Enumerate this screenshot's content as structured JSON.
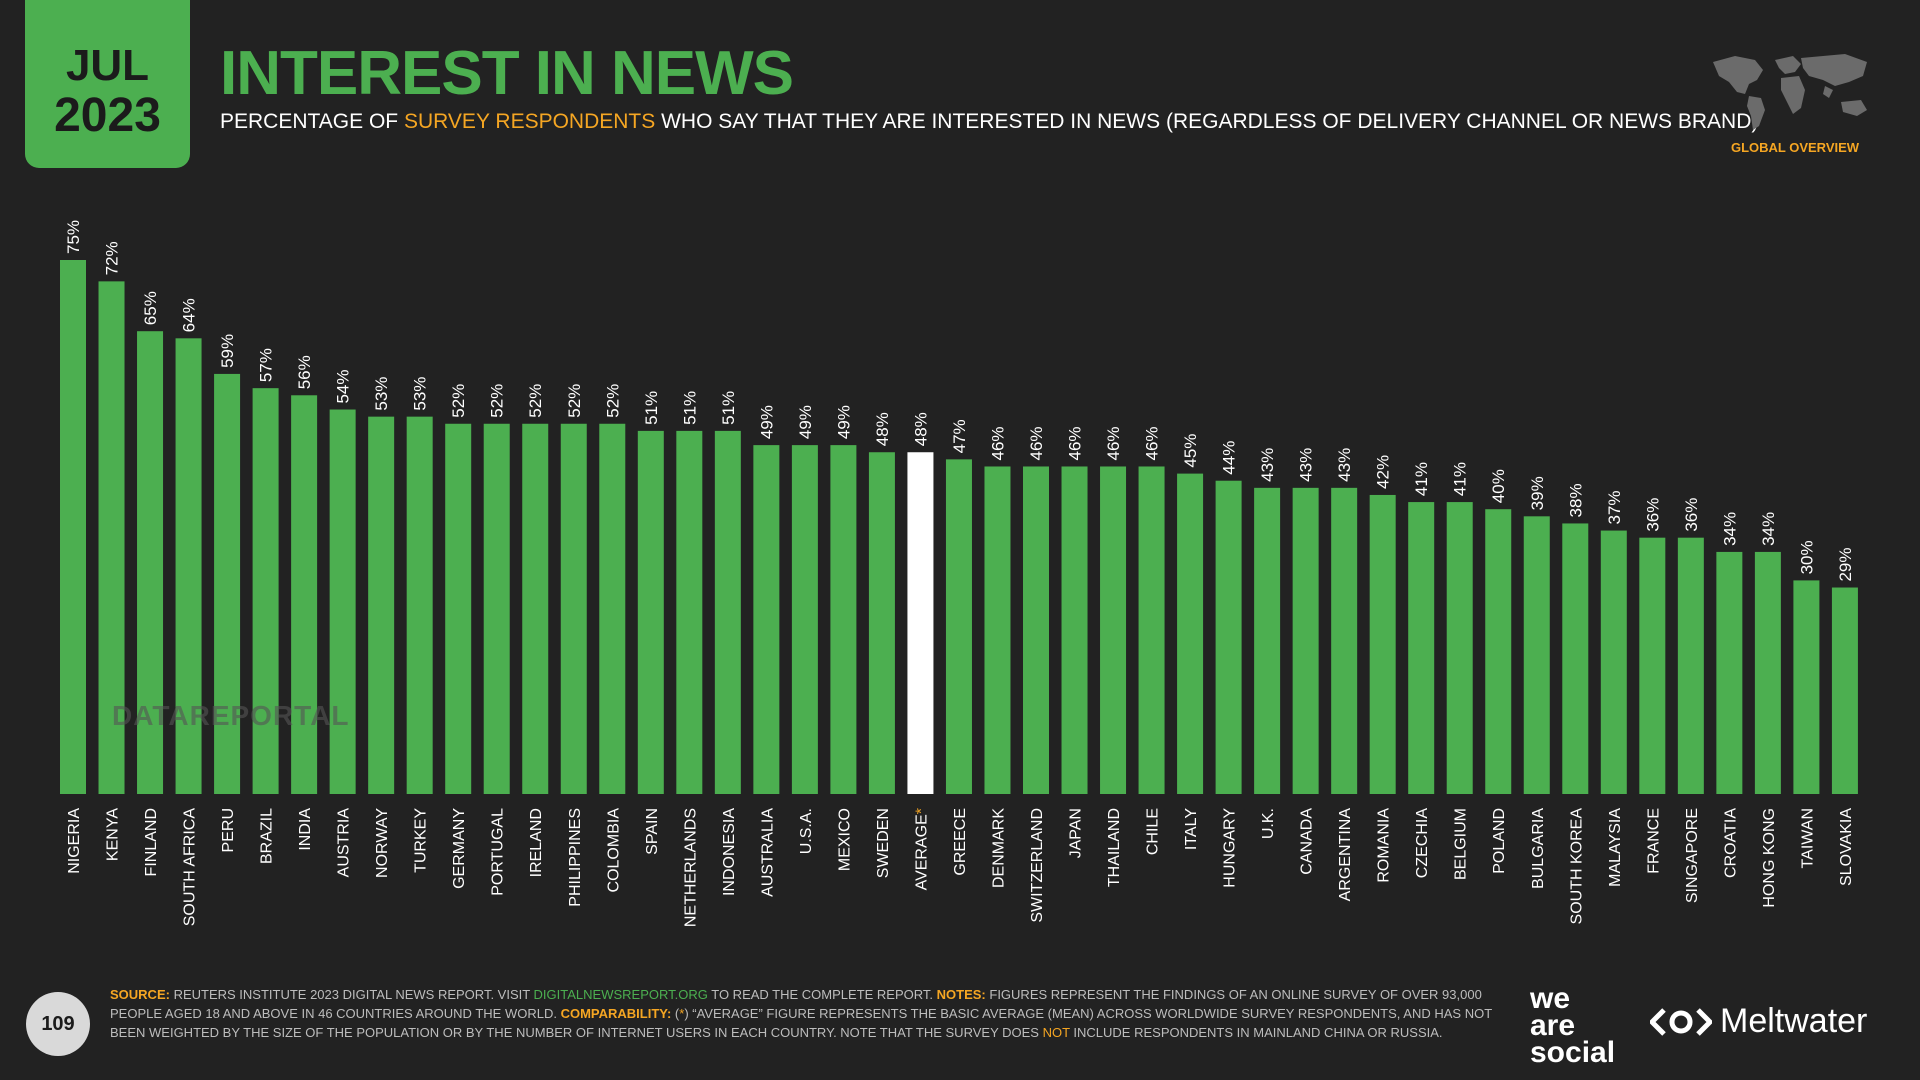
{
  "header": {
    "date_month": "JUL",
    "date_year": "2023",
    "title": "INTEREST IN NEWS",
    "subtitle_pre": "PERCENTAGE OF ",
    "subtitle_highlight": "SURVEY RESPONDENTS",
    "subtitle_post": " WHO SAY THAT THEY ARE INTERESTED IN NEWS (REGARDLESS OF DELIVERY CHANNEL OR NEWS BRAND)",
    "global_label": "GLOBAL OVERVIEW"
  },
  "watermark": "DATAREPORTAL",
  "chart_data": {
    "type": "bar",
    "categories": [
      "NIGERIA",
      "KENYA",
      "FINLAND",
      "SOUTH AFRICA",
      "PERU",
      "BRAZIL",
      "INDIA",
      "AUSTRIA",
      "NORWAY",
      "TURKEY",
      "GERMANY",
      "PORTUGAL",
      "IRELAND",
      "PHILIPPINES",
      "COLOMBIA",
      "SPAIN",
      "NETHERLANDS",
      "INDONESIA",
      "AUSTRALIA",
      "U.S.A.",
      "MEXICO",
      "SWEDEN",
      "AVERAGE",
      "GREECE",
      "DENMARK",
      "SWITZERLAND",
      "JAPAN",
      "THAILAND",
      "CHILE",
      "ITALY",
      "HUNGARY",
      "U.K.",
      "CANADA",
      "ARGENTINA",
      "ROMANIA",
      "CZECHIA",
      "BELGIUM",
      "POLAND",
      "BULGARIA",
      "SOUTH KOREA",
      "MALAYSIA",
      "FRANCE",
      "SINGAPORE",
      "CROATIA",
      "HONG KONG",
      "TAIWAN",
      "SLOVAKIA"
    ],
    "values": [
      75,
      72,
      65,
      64,
      59,
      57,
      56,
      54,
      53,
      53,
      52,
      52,
      52,
      52,
      52,
      51,
      51,
      51,
      49,
      49,
      49,
      48,
      48,
      47,
      46,
      46,
      46,
      46,
      46,
      45,
      44,
      43,
      43,
      43,
      42,
      41,
      41,
      40,
      39,
      38,
      37,
      36,
      36,
      34,
      34,
      30,
      29
    ],
    "value_suffix": "%",
    "highlight_category": "AVERAGE",
    "highlight_marker": "*",
    "ylim": [
      0,
      75
    ],
    "grid": false,
    "colors": {
      "bar": "#4caf50",
      "highlight": "#ffffff",
      "marker": "#f5a623"
    }
  },
  "footer": {
    "source_label": "SOURCE:",
    "source_text": " REUTERS INSTITUTE 2023 DIGITAL NEWS REPORT. VISIT ",
    "source_link": "DIGITALNEWSREPORT.ORG",
    "source_tail": " TO READ THE COMPLETE REPORT. ",
    "notes_label": "NOTES:",
    "notes_text": " FIGURES REPRESENT THE FINDINGS OF AN ONLINE SURVEY OF OVER 93,000 PEOPLE AGED 18 AND ABOVE IN 46 COUNTRIES AROUND THE WORLD. ",
    "comparability_label": "COMPARABILITY:",
    "comparability_pre": " (",
    "comparability_star": "*",
    "comparability_text": ") “AVERAGE” FIGURE REPRESENTS THE BASIC AVERAGE (MEAN) ACROSS WORLDWIDE SURVEY RESPONDENTS, AND HAS NOT BEEN WEIGHTED BY THE SIZE OF THE POPULATION OR BY THE NUMBER OF INTERNET USERS IN EACH COUNTRY. NOTE THAT THE SURVEY DOES ",
    "not_word": "NOT",
    "comparability_tail": " INCLUDE RESPONDENTS IN MAINLAND CHINA OR RUSSIA."
  },
  "page_number": "109",
  "brands": {
    "we_are_social": [
      "we",
      "are",
      "social"
    ],
    "meltwater": "Meltwater"
  },
  "colors": {
    "background": "#222222",
    "accent_green": "#4caf50",
    "accent_orange": "#f5a623"
  }
}
